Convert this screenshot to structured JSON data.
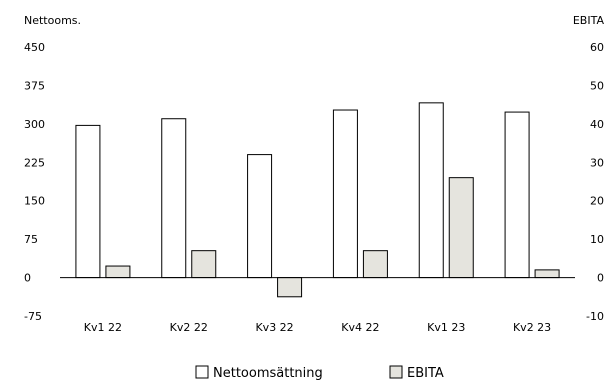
{
  "chart_data": {
    "type": "bar",
    "left_axis_title": "Nettooms.",
    "right_axis_title": "EBITA",
    "categories": [
      "Kv1 22",
      "Kv2 22",
      "Kv3 22",
      "Kv4 22",
      "Kv1 23",
      "Kv2 23"
    ],
    "y_left": {
      "min": -75,
      "max": 450,
      "ticks": [
        -75,
        0,
        75,
        150,
        225,
        300,
        375,
        450
      ]
    },
    "y_right": {
      "min": -10,
      "max": 60,
      "ticks": [
        -10,
        0,
        10,
        20,
        30,
        40,
        50,
        60
      ]
    },
    "series": [
      {
        "name": "Nettoomsättning",
        "axis": "left",
        "values": [
          297,
          310,
          240,
          327,
          341,
          323
        ],
        "color": "#ffffff"
      },
      {
        "name": "EBITA",
        "axis": "right",
        "values": [
          3,
          7,
          -5,
          7,
          26,
          2
        ],
        "color": "#e5e4de"
      }
    ],
    "grid": false,
    "legend_position": "bottom"
  }
}
